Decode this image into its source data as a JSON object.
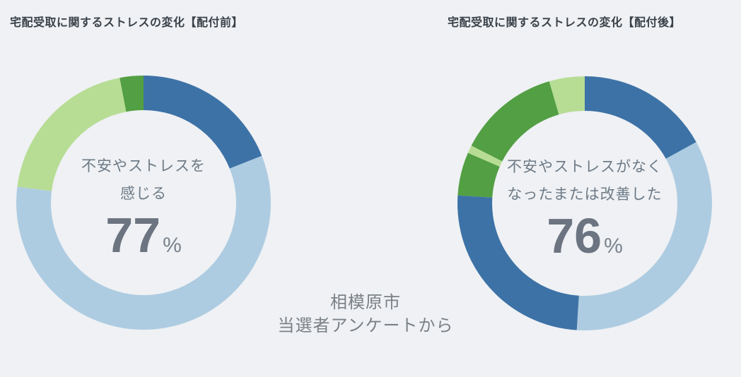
{
  "page": {
    "background_color": "#eff1f4"
  },
  "source_note": {
    "line1": "相模原市",
    "line2": "当選者アンケートから"
  },
  "palette": {
    "dark_blue": "#3d72a6",
    "light_blue": "#aecce1",
    "light_green": "#b7dd95",
    "dark_green": "#539f43",
    "title_text": "#3a4149",
    "center_label_text": "#6d7a86",
    "value_text": "#6b7480",
    "source_text": "#7b8187"
  },
  "chart_data": [
    {
      "type": "pie",
      "variant": "donut",
      "title": "宅配受取に関するストレスの変化【配付前】",
      "center_label_lines": [
        "不安やストレスを",
        "感じる"
      ],
      "center_value": "77",
      "center_value_unit": "%",
      "legend": "none",
      "start_angle_deg": 0,
      "direction": "clockwise",
      "outer_radius_px": 180,
      "inner_radius_px": 131,
      "segments": [
        {
          "label": "dark-blue",
          "value": 19,
          "color": "#3d72a6"
        },
        {
          "label": "light-blue",
          "value": 58,
          "color": "#aecce1"
        },
        {
          "label": "light-green",
          "value": 20,
          "color": "#b7dd95"
        },
        {
          "label": "dark-green",
          "value": 3,
          "color": "#539f43"
        }
      ]
    },
    {
      "type": "pie",
      "variant": "donut",
      "title": "宅配受取に関するストレスの変化【配付後】",
      "center_label_lines": [
        "不安やストレスがなく",
        "なったまたは改善した"
      ],
      "center_value": "76",
      "center_value_unit": "%",
      "legend": "none",
      "start_angle_deg": 0,
      "direction": "clockwise",
      "outer_radius_px": 180,
      "inner_radius_px": 131,
      "segments": [
        {
          "label": "dark-blue",
          "value": 17,
          "color": "#3d72a6"
        },
        {
          "label": "light-blue",
          "value": 34,
          "color": "#aecce1"
        },
        {
          "label": "dark-blue-2",
          "value": 25,
          "color": "#3d72a6"
        },
        {
          "label": "dark-green",
          "value": 5.5,
          "color": "#539f43"
        },
        {
          "label": "light-green-sliver",
          "value": 1,
          "color": "#b7dd95"
        },
        {
          "label": "dark-green-2",
          "value": 13,
          "color": "#539f43"
        },
        {
          "label": "light-green",
          "value": 4.5,
          "color": "#b7dd95"
        }
      ]
    }
  ]
}
